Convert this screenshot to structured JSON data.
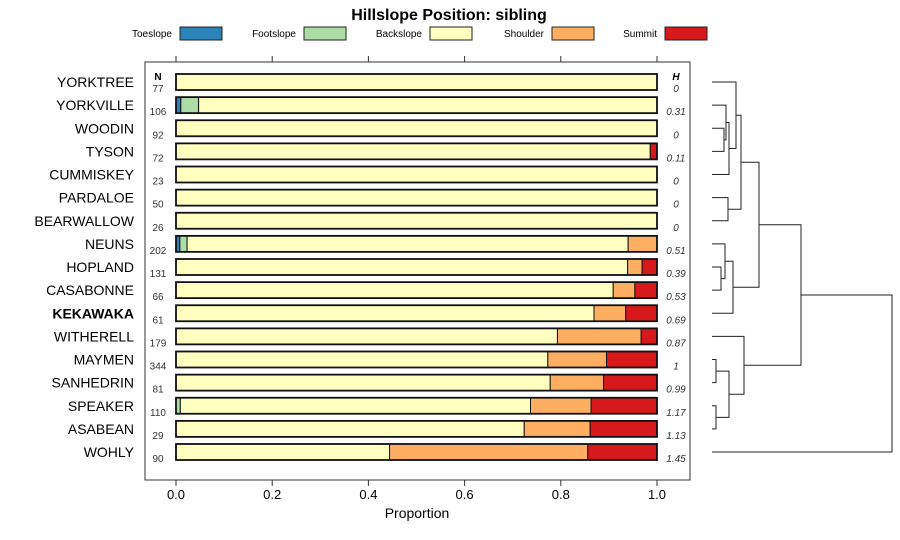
{
  "chart_data": {
    "type": "bar",
    "stacked": true,
    "orientation": "horizontal",
    "title": "Hillslope Position: sibling",
    "xlabel": "Proportion",
    "xlim": [
      0,
      1
    ],
    "x_ticks": [
      "0.0",
      "0.2",
      "0.4",
      "0.6",
      "0.8",
      "1.0"
    ],
    "n_header": "N",
    "h_header": "H",
    "legend_placement": "top",
    "series": [
      {
        "name": "Toeslope",
        "color": "#2B83BA"
      },
      {
        "name": "Footslope",
        "color": "#ABDDA4"
      },
      {
        "name": "Backslope",
        "color": "#FFFFBF"
      },
      {
        "name": "Shoulder",
        "color": "#FDAE61"
      },
      {
        "name": "Summit",
        "color": "#D7191C"
      }
    ],
    "categories": [
      "YORKTREE",
      "YORKVILLE",
      "WOODIN",
      "TYSON",
      "CUMMISKEY",
      "PARDALOE",
      "BEARWALLOW",
      "NEUNS",
      "HOPLAND",
      "CASABONNE",
      "KEKAWAKA",
      "WITHERELL",
      "MAYMEN",
      "SANHEDRIN",
      "SPEAKER",
      "ASABEAN",
      "WOHLY"
    ],
    "highlight": "KEKAWAKA",
    "n": [
      "77",
      "106",
      "92",
      "72",
      "23",
      "50",
      "26",
      "202",
      "131",
      "66",
      "61",
      "179",
      "344",
      "81",
      "110",
      "29",
      "90"
    ],
    "h": [
      "0",
      "0.31",
      "0",
      "0.11",
      "0",
      "0",
      "0",
      "0.51",
      "0.39",
      "0.53",
      "0.69",
      "0.87",
      "1",
      "0.99",
      "1.17",
      "1.13",
      "1.45"
    ],
    "values": [
      [
        0,
        0,
        1,
        0,
        0
      ],
      [
        0.01,
        0.037,
        0.953,
        0,
        0
      ],
      [
        0,
        0,
        1,
        0,
        0
      ],
      [
        0,
        0,
        0.986,
        0,
        0.014
      ],
      [
        0,
        0,
        1,
        0,
        0
      ],
      [
        0,
        0,
        1,
        0,
        0
      ],
      [
        0,
        0,
        1,
        0,
        0
      ],
      [
        0.008,
        0.015,
        0.917,
        0.06,
        0
      ],
      [
        0,
        0,
        0.939,
        0.03,
        0.031
      ],
      [
        0,
        0,
        0.909,
        0.045,
        0.046
      ],
      [
        0,
        0,
        0.869,
        0.066,
        0.065
      ],
      [
        0,
        0,
        0.793,
        0.174,
        0.033
      ],
      [
        0,
        0,
        0.773,
        0.122,
        0.105
      ],
      [
        0,
        0,
        0.778,
        0.111,
        0.111
      ],
      [
        0,
        0.009,
        0.728,
        0.126,
        0.137
      ],
      [
        0,
        0,
        0.724,
        0.137,
        0.139
      ],
      [
        0,
        0,
        0.444,
        0.412,
        0.144
      ]
    ]
  }
}
